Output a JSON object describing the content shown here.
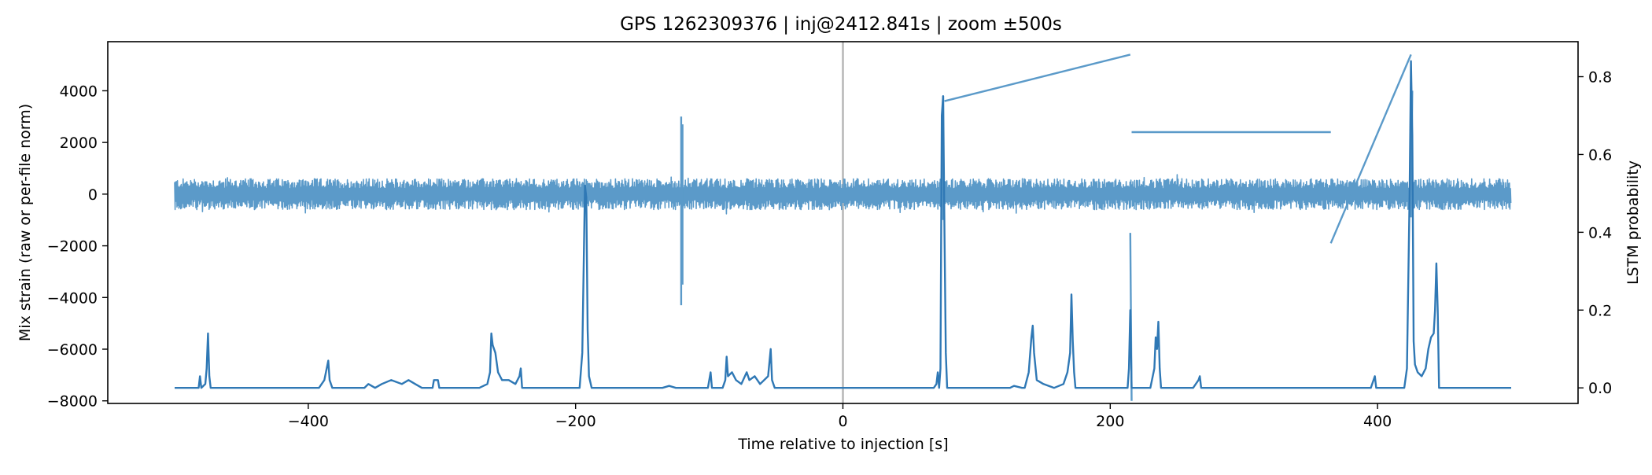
{
  "chart_data": {
    "type": "line",
    "title": "GPS 1262309376 | inj@2412.841s | zoom ±500s",
    "xlabel": "Time relative to injection [s]",
    "ylabel": "Mix strain (raw or per-file norm)",
    "y2label": "LSTM probability",
    "xlim": [
      -550,
      550
    ],
    "ylim": [
      -8100,
      5900
    ],
    "y2lim": [
      -0.04,
      0.89
    ],
    "xticks": [
      -400,
      -200,
      0,
      200,
      400
    ],
    "yticks": [
      -8000,
      -6000,
      -4000,
      -2000,
      0,
      2000,
      4000
    ],
    "y2ticks": [
      0.0,
      0.2,
      0.4,
      0.6,
      0.8
    ],
    "xtick_labels": [
      "−400",
      "−200",
      "0",
      "200",
      "400"
    ],
    "ytick_labels": [
      "−8000",
      "−6000",
      "−4000",
      "−2000",
      "0",
      "2000",
      "4000"
    ],
    "y2tick_labels": [
      "0.0",
      "0.2",
      "0.4",
      "0.6",
      "0.8"
    ],
    "grid": false,
    "marker_line_x": 0,
    "colors": {
      "strain": "#5b9ac9",
      "prob": "#2f78b5",
      "marker": "#b7b7b7"
    },
    "series": [
      {
        "axis": "left",
        "noise_band": {
          "x_start": -500,
          "x_end": 500,
          "center": 0,
          "typical_amplitude": 600
        },
        "points": [
          [
            -121,
            3000
          ],
          [
            -121,
            -4300
          ],
          [
            -120,
            2700
          ],
          [
            -120,
            -3500
          ],
          [
            75,
            3800
          ],
          [
            75,
            -1000
          ],
          [
            76,
            3600
          ],
          [
            215,
            5400
          ],
          [
            215,
            -1500
          ],
          [
            216,
            -8000
          ],
          [
            216,
            2400
          ],
          [
            365,
            2400
          ],
          [
            365,
            -1900
          ],
          [
            425,
            5400
          ],
          [
            425,
            -900
          ],
          [
            426,
            4000
          ],
          [
            -192,
            0
          ],
          [
            -192,
            -400
          ]
        ]
      },
      {
        "axis": "right",
        "baseline": 0.0,
        "points": [
          [
            -500,
            0.0
          ],
          [
            -482,
            0.0
          ],
          [
            -481,
            0.03
          ],
          [
            -480,
            0.0
          ],
          [
            -477,
            0.01
          ],
          [
            -476,
            0.05
          ],
          [
            -475,
            0.14
          ],
          [
            -474,
            0.03
          ],
          [
            -473,
            0.0
          ],
          [
            -392,
            0.0
          ],
          [
            -388,
            0.02
          ],
          [
            -385,
            0.07
          ],
          [
            -384,
            0.02
          ],
          [
            -382,
            0.0
          ],
          [
            -358,
            0.0
          ],
          [
            -355,
            0.01
          ],
          [
            -350,
            0.0
          ],
          [
            -345,
            0.01
          ],
          [
            -338,
            0.02
          ],
          [
            -330,
            0.01
          ],
          [
            -325,
            0.02
          ],
          [
            -320,
            0.01
          ],
          [
            -315,
            0.0
          ],
          [
            -307,
            0.0
          ],
          [
            -306,
            0.02
          ],
          [
            -303,
            0.02
          ],
          [
            -302,
            0.0
          ],
          [
            -272,
            0.0
          ],
          [
            -266,
            0.01
          ],
          [
            -264,
            0.04
          ],
          [
            -263,
            0.14
          ],
          [
            -262,
            0.11
          ],
          [
            -260,
            0.09
          ],
          [
            -258,
            0.04
          ],
          [
            -255,
            0.02
          ],
          [
            -250,
            0.02
          ],
          [
            -245,
            0.01
          ],
          [
            -242,
            0.03
          ],
          [
            -241,
            0.05
          ],
          [
            -240,
            0.0
          ],
          [
            -197,
            0.0
          ],
          [
            -195,
            0.09
          ],
          [
            -193,
            0.52
          ],
          [
            -192,
            0.49
          ],
          [
            -191,
            0.15
          ],
          [
            -190,
            0.03
          ],
          [
            -188,
            0.0
          ],
          [
            -135,
            0.0
          ],
          [
            -130,
            0.005
          ],
          [
            -125,
            0.0
          ],
          [
            -101,
            0.0
          ],
          [
            -99,
            0.04
          ],
          [
            -98,
            0.0
          ],
          [
            -90,
            0.0
          ],
          [
            -88,
            0.02
          ],
          [
            -87,
            0.08
          ],
          [
            -86,
            0.03
          ],
          [
            -83,
            0.04
          ],
          [
            -80,
            0.02
          ],
          [
            -76,
            0.01
          ],
          [
            -72,
            0.04
          ],
          [
            -70,
            0.02
          ],
          [
            -66,
            0.03
          ],
          [
            -62,
            0.01
          ],
          [
            -56,
            0.03
          ],
          [
            -54,
            0.1
          ],
          [
            -53,
            0.02
          ],
          [
            -51,
            0.0
          ],
          [
            68,
            0.0
          ],
          [
            70,
            0.01
          ],
          [
            71,
            0.04
          ],
          [
            72,
            0.0
          ],
          [
            73,
            0.05
          ],
          [
            74,
            0.7
          ],
          [
            75,
            0.75
          ],
          [
            76,
            0.4
          ],
          [
            77,
            0.09
          ],
          [
            78,
            0.0
          ],
          [
            125,
            0.0
          ],
          [
            128,
            0.005
          ],
          [
            134,
            0.0
          ],
          [
            136,
            0.0
          ],
          [
            139,
            0.04
          ],
          [
            141,
            0.13
          ],
          [
            142,
            0.16
          ],
          [
            143,
            0.09
          ],
          [
            145,
            0.02
          ],
          [
            150,
            0.01
          ],
          [
            158,
            0.0
          ],
          [
            165,
            0.01
          ],
          [
            168,
            0.04
          ],
          [
            170,
            0.09
          ],
          [
            171,
            0.24
          ],
          [
            172,
            0.12
          ],
          [
            173,
            0.04
          ],
          [
            174,
            0.0
          ],
          [
            213,
            0.0
          ],
          [
            214,
            0.05
          ],
          [
            215,
            0.2
          ],
          [
            216,
            0.0
          ],
          [
            230,
            0.0
          ],
          [
            233,
            0.05
          ],
          [
            234,
            0.13
          ],
          [
            235,
            0.1
          ],
          [
            236,
            0.17
          ],
          [
            237,
            0.05
          ],
          [
            238,
            0.0
          ],
          [
            262,
            0.0
          ],
          [
            266,
            0.02
          ],
          [
            267,
            0.03
          ],
          [
            268,
            0.0
          ],
          [
            395,
            0.0
          ],
          [
            398,
            0.03
          ],
          [
            399,
            0.0
          ],
          [
            420,
            0.0
          ],
          [
            422,
            0.05
          ],
          [
            424,
            0.5
          ],
          [
            425,
            0.84
          ],
          [
            426,
            0.65
          ],
          [
            427,
            0.12
          ],
          [
            428,
            0.06
          ],
          [
            430,
            0.04
          ],
          [
            433,
            0.03
          ],
          [
            436,
            0.05
          ],
          [
            438,
            0.1
          ],
          [
            440,
            0.13
          ],
          [
            442,
            0.14
          ],
          [
            443,
            0.2
          ],
          [
            444,
            0.32
          ],
          [
            445,
            0.2
          ],
          [
            446,
            0.0
          ],
          [
            500,
            0.0
          ]
        ]
      }
    ]
  }
}
